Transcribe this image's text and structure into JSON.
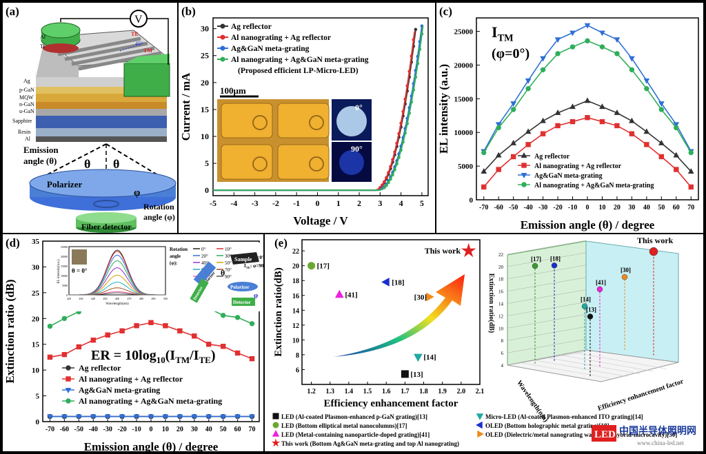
{
  "panel_a": {
    "label": "(a)",
    "voltmeter": "V",
    "layers": [
      "Al",
      "Ti",
      "Ag",
      "p-GaN",
      "MQW",
      "n-GaN",
      "u-GaN",
      "Sapphire",
      "Resin",
      "Al"
    ],
    "te": "TE",
    "tm": "TM",
    "angle45": "45°",
    "emission": "Emission",
    "emission2": "angle (θ)",
    "theta": "θ",
    "phi": "φ",
    "polarizer": "Polarizer",
    "rotation": "Rotation",
    "rotation2": "angle (φ)",
    "fiber": "Fiber detector",
    "colors": {
      "green": "#3fae49",
      "blue": "#4a7fd6",
      "sapphire": "#3c5fb0",
      "gold": "#d9b85a"
    }
  },
  "chart_data": [
    {
      "id": "b",
      "type": "line",
      "panel_label": "(b)",
      "xlabel": "Voltage / V",
      "ylabel": "Current / mA",
      "xlim": [
        -5,
        5.3
      ],
      "ylim": [
        -1,
        32
      ],
      "xticks": [
        "-5",
        "-4",
        "-3",
        "-2",
        "-1",
        "0",
        "1",
        "2",
        "3",
        "4",
        "5"
      ],
      "yticks": [
        "0",
        "5",
        "10",
        "15",
        "20",
        "25",
        "30"
      ],
      "legend": [
        "Ag reflector",
        "Al nanograting + Ag reflector",
        "Ag&GaN meta-grating",
        "Al nanograting + Ag&GaN meta-grating",
        "(Proposed efficient LP-Micro-LED)"
      ],
      "series": [
        {
          "name": "Ag reflector",
          "color": "#333333",
          "v0": 2.75,
          "vmax": 4.72
        },
        {
          "name": "Al nanograting + Ag reflector",
          "color": "#e03030",
          "v0": 2.72,
          "vmax": 4.68
        },
        {
          "name": "Ag&GaN meta-grating",
          "color": "#2f6fd6",
          "v0": 2.85,
          "vmax": 5.0
        },
        {
          "name": "Al nanograting + Ag&GaN meta-grating",
          "color": "#2fae5a",
          "v0": 2.9,
          "vmax": 5.05
        }
      ],
      "inset": {
        "scale": "100μm",
        "angle0": "0°",
        "angle90": "90°"
      }
    },
    {
      "id": "c",
      "type": "line",
      "panel_label": "(c)",
      "title": "I",
      "title_sub": "TM",
      "title2": "(φ=0°)",
      "xlabel": "Emission angle (θ) / degree",
      "ylabel": "EL intensity (a.u.)",
      "x": [
        -70,
        -60,
        -50,
        -40,
        -30,
        -20,
        -10,
        0,
        10,
        20,
        30,
        40,
        50,
        60,
        70
      ],
      "xlim": [
        -75,
        75
      ],
      "ylim": [
        0,
        27000
      ],
      "xticks": [
        "-70",
        "-60",
        "-50",
        "-40",
        "-30",
        "-20",
        "-10",
        "0",
        "10",
        "20",
        "30",
        "40",
        "50",
        "60",
        "70"
      ],
      "yticks": [
        "0",
        "5000",
        "10000",
        "15000",
        "20000",
        "25000"
      ],
      "series": [
        {
          "name": "Ag reflector",
          "color": "#333333",
          "marker": "triangle-up",
          "values": [
            4200,
            6600,
            8400,
            10100,
            11700,
            12900,
            13800,
            14700,
            13800,
            12900,
            11700,
            10100,
            8400,
            6600,
            4200
          ]
        },
        {
          "name": "Al nanograting + Ag reflector",
          "color": "#e03030",
          "marker": "square",
          "values": [
            1900,
            4500,
            6400,
            8200,
            9800,
            11000,
            11600,
            12200,
            11600,
            11000,
            9800,
            8200,
            6400,
            4500,
            1900
          ]
        },
        {
          "name": "Ag&GaN meta-grating",
          "color": "#2f6fd6",
          "marker": "triangle-down",
          "values": [
            7200,
            11200,
            14300,
            17700,
            21000,
            23800,
            24800,
            25900,
            24800,
            23800,
            21000,
            17700,
            14300,
            11200,
            7200
          ]
        },
        {
          "name": "Al nanograting + Ag&GaN meta-grating",
          "color": "#2fae5a",
          "marker": "circle",
          "values": [
            7000,
            10700,
            13400,
            16500,
            19300,
            21700,
            22700,
            23600,
            22700,
            21700,
            19300,
            16500,
            13400,
            10700,
            7000
          ]
        }
      ]
    },
    {
      "id": "d",
      "type": "line",
      "panel_label": "(d)",
      "xlabel": "Emission angle (θ) / degree",
      "ylabel": "Extinction ratio (dB)",
      "formula": "ER = 10log",
      "formula_sub": "10",
      "formula_tail": "(I",
      "formula_tm": "TM",
      "formula_slash": "/I",
      "formula_te": "TE",
      "formula_end": ")",
      "x": [
        -70,
        -60,
        -50,
        -40,
        -30,
        -20,
        -10,
        0,
        10,
        20,
        30,
        40,
        50,
        60,
        70
      ],
      "xlim": [
        -75,
        75
      ],
      "ylim": [
        0,
        35
      ],
      "xticks": [
        "-70",
        "-60",
        "-50",
        "-40",
        "-30",
        "-20",
        "-10",
        "0",
        "10",
        "20",
        "30",
        "40",
        "50",
        "60",
        "70"
      ],
      "yticks": [
        "0",
        "5",
        "10",
        "15",
        "20",
        "25",
        "30",
        "35"
      ],
      "series": [
        {
          "name": "Ag reflector",
          "color": "#333333",
          "marker": "circle",
          "values": [
            1,
            1,
            1,
            1,
            1,
            1,
            1,
            1,
            1,
            1,
            1,
            1,
            1,
            1,
            1
          ]
        },
        {
          "name": "Al nanograting + Ag reflector",
          "color": "#e03030",
          "marker": "square",
          "values": [
            12.5,
            13.0,
            14.5,
            15.8,
            16.8,
            17.6,
            18.6,
            19.2,
            18.6,
            17.6,
            16.6,
            15.0,
            14.6,
            13.3,
            12.2
          ]
        },
        {
          "name": "Ag&GaN meta-grating",
          "color": "#2f6fd6",
          "marker": "triangle-down",
          "values": [
            1,
            1,
            1,
            1,
            1,
            1,
            1,
            1,
            1,
            1,
            1,
            1,
            1,
            1,
            1
          ]
        },
        {
          "name": "Al nanograting + Ag&GaN meta-grating",
          "color": "#2fae5a",
          "marker": "circle",
          "values": [
            18.5,
            20.0,
            21.3,
            22.2,
            22.9,
            23.3,
            22.9,
            23.6,
            23.3,
            22.9,
            22.5,
            22.0,
            20.6,
            20.2,
            19.0
          ]
        }
      ],
      "inset": {
        "ylabel": "EL intensity(a.u.)",
        "xlabel": "Wavelength(nm)",
        "theta": "θ = 0°",
        "rotation": "Rotation",
        "angle": "angle",
        "phi": "(φ):",
        "legend": [
          "0°",
          "10°",
          "20°",
          "30°",
          "40°",
          "50°",
          "60°",
          "70°",
          "80°",
          "90°"
        ],
        "colors": [
          "#222222",
          "#e03030",
          "#2f6fd6",
          "#2fae5a",
          "#9b30d0",
          "#d6a000",
          "#1fb0c8",
          "#a05020",
          "#ff66aa",
          "#555555"
        ],
        "itm": "I",
        "itm_sub": "TM",
        "itm_val": ": φ=0°",
        "ite": "I",
        "ite_sub": "TE",
        "ite_val": ": φ=90°",
        "yticks": [
          "0",
          "5000",
          "10000",
          "15000",
          "20000",
          "25000"
        ],
        "xticks": [
          "420",
          "430",
          "440",
          "450",
          "460",
          "470",
          "480",
          "490",
          "500"
        ],
        "sample": "Sample",
        "polarizer": "Polarizer",
        "detector": "Detector",
        "theta_sym": "θ",
        "phi_sym": "φ"
      }
    },
    {
      "id": "e",
      "type": "scatter",
      "panel_label": "(e)",
      "xlabel": "Efficiency enhancement factor",
      "ylabel": "Extinction ratio(dB)",
      "xlim": [
        1.15,
        2.1
      ],
      "ylim": [
        4,
        23.5
      ],
      "xticks": [
        "1.2",
        "1.3",
        "1.4",
        "1.5",
        "1.6",
        "1.7",
        "1.8",
        "1.9",
        "2.0",
        "2.1"
      ],
      "yticks": [
        "6",
        "8",
        "10",
        "12",
        "14",
        "16",
        "18",
        "20",
        "22"
      ],
      "points": [
        {
          "label": "[17]",
          "x": 1.2,
          "y": 20.0,
          "marker": "circle",
          "color": "#6aa830"
        },
        {
          "label": "[18]",
          "x": 1.6,
          "y": 17.8,
          "marker": "triangle-left",
          "color": "#1a2fd0"
        },
        {
          "label": "[41]",
          "x": 1.35,
          "y": 16.1,
          "marker": "triangle-up",
          "color": "#ee22dd"
        },
        {
          "label": "[30]",
          "x": 1.83,
          "y": 15.8,
          "marker": "triangle-right",
          "color": "#f08a1c"
        },
        {
          "label": "[14]",
          "x": 1.77,
          "y": 7.7,
          "marker": "triangle-down",
          "color": "#20a9a2"
        },
        {
          "label": "[13]",
          "x": 1.7,
          "y": 5.4,
          "marker": "square",
          "color": "#111111"
        },
        {
          "label": "This work",
          "x": 2.04,
          "y": 22.0,
          "marker": "star",
          "color": "#e02020"
        }
      ],
      "legend": [
        {
          "text": "LED (Al-coated Plasmon-enhanced p-GaN grating)[13]",
          "marker": "square",
          "color": "#111111"
        },
        {
          "text": "Micro-LED (Al-coated Plasmon-enhanced ITO grating)[14]",
          "marker": "triangle-down",
          "color": "#20a9a2"
        },
        {
          "text": "LED (Bottom elliptical metal nanocolumns)[17]",
          "marker": "circle",
          "color": "#6aa830"
        },
        {
          "text": "OLED (Bottom holographic metal grating)[18]",
          "marker": "triangle-left",
          "color": "#1a2fd0"
        },
        {
          "text": "LED (Metal-containing nanoparticle-doped grating)[41]",
          "marker": "triangle-up",
          "color": "#ee22dd"
        },
        {
          "text": "OLED (Dielectric/metal nanograting waveguide hybrid-microcavity)[30]",
          "marker": "triangle-right",
          "color": "#f08a1c"
        },
        {
          "text": "This work (Bottom Ag&GaN meta-grating and top Al nanograting)",
          "marker": "star",
          "color": "#e02020"
        }
      ],
      "threeD": {
        "this_work": "This work",
        "zlabel": "Extinction ratio(dB)",
        "wlabel": "Wavelength(nm)",
        "elabel": "Efficiency enhancement factor",
        "zticks": [
          "4",
          "6",
          "8",
          "10",
          "12",
          "14",
          "16",
          "18",
          "20",
          "22"
        ],
        "points": [
          {
            "label": "[17]",
            "z": 20,
            "color": "#3a9a30"
          },
          {
            "label": "[18]",
            "z": 19.9,
            "color": "#1a2fd0"
          },
          {
            "label": "[41]",
            "z": 16.4,
            "color": "#ee22dd"
          },
          {
            "label": "[30]",
            "z": 17.3,
            "color": "#f08a1c"
          },
          {
            "label": "[14]",
            "z": 13.8,
            "color": "#20a9a2"
          },
          {
            "label": "[13]",
            "z": 12.6,
            "color": "#111111"
          },
          {
            "label": "This work",
            "z": 21.8,
            "color": "#e02020"
          }
        ]
      }
    }
  ],
  "watermark": {
    "brand": "LED",
    "cn": "中国半导体照明网",
    "url": "www.china-led.net"
  }
}
